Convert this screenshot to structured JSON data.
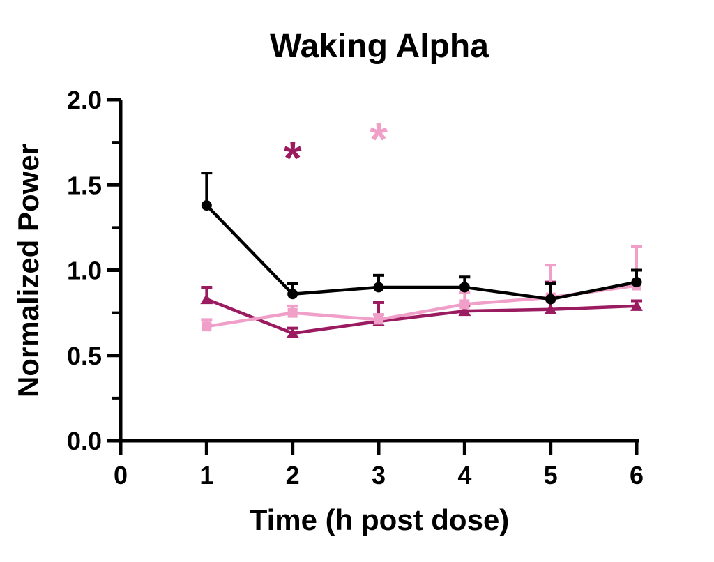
{
  "title": "Waking Alpha",
  "chart_data": {
    "type": "line",
    "title": "Waking Alpha",
    "xlabel": "Time (h post dose)",
    "ylabel": "Normalized Power",
    "xlim": [
      0,
      6.05
    ],
    "ylim": [
      0.0,
      2.0
    ],
    "grid": false,
    "legend_position": "none",
    "x_ticks": [
      0,
      1,
      2,
      3,
      4,
      5,
      6
    ],
    "x_tick_labels": [
      "0",
      "1",
      "2",
      "3",
      "4",
      "5",
      "6"
    ],
    "y_ticks": [
      0.0,
      0.5,
      1.0,
      1.5,
      2.0
    ],
    "y_tick_labels": [
      "0.0",
      "0.5",
      "1.0",
      "1.5",
      "2.0"
    ],
    "y_minor_ticks": [
      0.25,
      0.75,
      1.25,
      1.75
    ],
    "x": [
      1,
      2,
      3,
      4,
      5,
      6
    ],
    "series": [
      {
        "name": "dark-magenta-triangles",
        "marker": "triangle",
        "color": "#9B1B60",
        "values": [
          0.83,
          0.63,
          0.7,
          0.76,
          0.77,
          0.79
        ],
        "err_top": [
          0.9,
          0.66,
          0.81,
          0.79,
          0.93,
          0.82
        ]
      },
      {
        "name": "light-pink-squares",
        "marker": "square",
        "color": "#F09FC9",
        "values": [
          0.67,
          0.75,
          0.71,
          0.8,
          0.84,
          0.91
        ],
        "err_top": [
          0.71,
          0.79,
          0.74,
          0.87,
          1.03,
          1.14
        ]
      },
      {
        "name": "black-circles",
        "marker": "circle",
        "color": "#000000",
        "values": [
          1.38,
          0.86,
          0.9,
          0.9,
          0.83,
          0.93
        ],
        "err_top": [
          1.57,
          0.92,
          0.97,
          0.96,
          0.92,
          1.0
        ]
      }
    ],
    "significance_markers": [
      {
        "symbol": "*",
        "x": 2,
        "y": 1.72,
        "color": "#9B1B60"
      },
      {
        "symbol": "*",
        "x": 3,
        "y": 1.83,
        "color": "#F09FC9"
      }
    ]
  },
  "colors": {
    "background": "#FFFFFF",
    "axis": "#000000",
    "series_black": "#000000",
    "series_dark_magenta": "#9B1B60",
    "series_light_pink": "#F09FC9"
  }
}
